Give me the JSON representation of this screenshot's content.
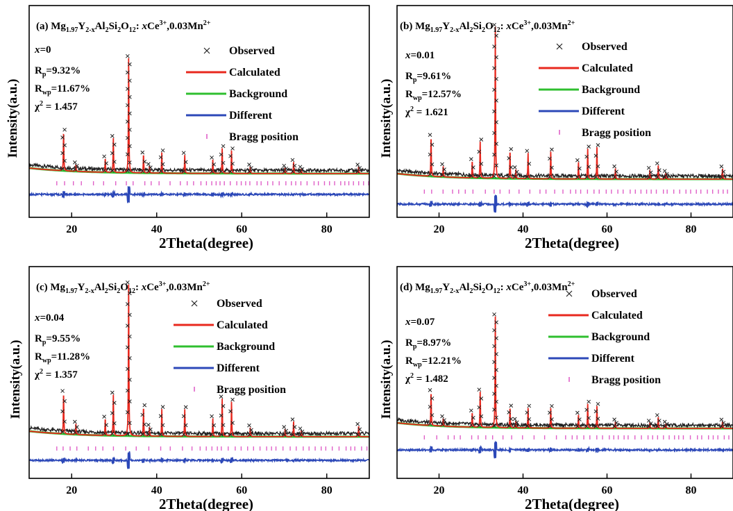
{
  "colors": {
    "observed": "#222222",
    "calculated": "#e8281e",
    "background": "#2fbf2f",
    "different": "#2c48b8",
    "bragg": "#e060c8",
    "axis": "#000000"
  },
  "legend": {
    "observed": "Observed",
    "calculated": "Calculated",
    "background": "Background",
    "different": "Different",
    "bragg": "Bragg position"
  },
  "chart_data": [
    {
      "type": "line",
      "panel": "(a)",
      "title": {
        "prefix": "(a)",
        "formula": "Mg1.97Y2-xAl2Si2O12: xCe3+,0.03Mn2+"
      },
      "xlabel": "2Theta(degree)",
      "ylabel": "Intensity(a.u.)",
      "xlim": [
        10,
        90
      ],
      "xticks": [
        20,
        40,
        60,
        80
      ],
      "annotations": {
        "x_label": "x=0",
        "rp": "9.32%",
        "rwp": "11.67%",
        "chi2": "1.457"
      },
      "peaks": [
        [
          18.1,
          0.34
        ],
        [
          21.0,
          0.06
        ],
        [
          27.9,
          0.12
        ],
        [
          29.8,
          0.3
        ],
        [
          33.4,
          1.0
        ],
        [
          36.9,
          0.16
        ],
        [
          38.3,
          0.06
        ],
        [
          41.2,
          0.18
        ],
        [
          46.6,
          0.16
        ],
        [
          53.2,
          0.12
        ],
        [
          55.4,
          0.22
        ],
        [
          57.6,
          0.2
        ],
        [
          62.0,
          0.06
        ],
        [
          70.2,
          0.05
        ],
        [
          72.2,
          0.1
        ],
        [
          74.0,
          0.04
        ],
        [
          87.5,
          0.06
        ]
      ],
      "series": [
        {
          "name": "Observed"
        },
        {
          "name": "Calculated"
        },
        {
          "name": "Background"
        },
        {
          "name": "Different"
        },
        {
          "name": "Bragg position"
        }
      ]
    },
    {
      "type": "line",
      "panel": "(b)",
      "title": {
        "prefix": "(b)",
        "formula": "Mg1.97Y2-xAl2Si2O12: xCe3+,0.03Mn2+"
      },
      "xlabel": "2Theta(degree)",
      "ylabel": "Intensity(a.u.)",
      "xlim": [
        10,
        90
      ],
      "xticks": [
        20,
        40,
        60,
        80
      ],
      "annotations": {
        "x_label": "x=0.01",
        "rp": "9.61%",
        "rwp": "12.57%",
        "chi2": "1.621"
      },
      "peaks": [
        [
          18.1,
          0.26
        ],
        [
          21.0,
          0.07
        ],
        [
          27.9,
          0.11
        ],
        [
          29.8,
          0.24
        ],
        [
          33.4,
          1.0
        ],
        [
          36.9,
          0.18
        ],
        [
          38.3,
          0.06
        ],
        [
          41.2,
          0.17
        ],
        [
          46.6,
          0.18
        ],
        [
          53.2,
          0.11
        ],
        [
          55.4,
          0.2
        ],
        [
          57.6,
          0.21
        ],
        [
          62.0,
          0.07
        ],
        [
          70.2,
          0.06
        ],
        [
          72.2,
          0.09
        ],
        [
          74.0,
          0.04
        ],
        [
          87.5,
          0.07
        ]
      ],
      "series": [
        {
          "name": "Observed"
        },
        {
          "name": "Calculated"
        },
        {
          "name": "Background"
        },
        {
          "name": "Different"
        },
        {
          "name": "Bragg position"
        }
      ]
    },
    {
      "type": "line",
      "panel": "(c)",
      "title": {
        "prefix": "(c)",
        "formula": "Mg1.97Y2-xAl2Si2O12: xCe3+,0.03Mn2+"
      },
      "xlabel": "2Theta(degree)",
      "ylabel": "Intensity(a.u.)",
      "xlim": [
        10,
        90
      ],
      "xticks": [
        20,
        40,
        60,
        80
      ],
      "annotations": {
        "x_label": "x=0.04",
        "rp": "9.55%",
        "rwp": "11.28%",
        "chi2": "1.357"
      },
      "peaks": [
        [
          18.1,
          0.27
        ],
        [
          21.0,
          0.07
        ],
        [
          27.9,
          0.11
        ],
        [
          29.8,
          0.27
        ],
        [
          33.4,
          1.0
        ],
        [
          36.9,
          0.19
        ],
        [
          38.3,
          0.06
        ],
        [
          41.2,
          0.18
        ],
        [
          46.6,
          0.18
        ],
        [
          53.2,
          0.12
        ],
        [
          55.4,
          0.25
        ],
        [
          57.6,
          0.23
        ],
        [
          62.0,
          0.06
        ],
        [
          70.2,
          0.05
        ],
        [
          72.2,
          0.1
        ],
        [
          74.0,
          0.04
        ],
        [
          87.5,
          0.07
        ]
      ],
      "series": [
        {
          "name": "Observed"
        },
        {
          "name": "Calculated"
        },
        {
          "name": "Background"
        },
        {
          "name": "Different"
        },
        {
          "name": "Bragg position"
        }
      ]
    },
    {
      "type": "line",
      "panel": "(d)",
      "title": {
        "prefix": "(d)",
        "formula": "Mg1.97Y2-xAl2Si2O12: xCe3+,0.03Mn2+"
      },
      "xlabel": "2Theta(degree)",
      "ylabel": "Intensity(a.u.)",
      "xlim": [
        10,
        90
      ],
      "xticks": [
        20,
        40,
        60,
        80
      ],
      "annotations": {
        "x_label": "x=0.07",
        "rp": "8.97%",
        "rwp": "12.21%",
        "chi2": "1.482"
      },
      "peaks": [
        [
          18.1,
          0.3
        ],
        [
          21.0,
          0.07
        ],
        [
          27.9,
          0.13
        ],
        [
          29.8,
          0.32
        ],
        [
          33.4,
          1.0
        ],
        [
          36.9,
          0.18
        ],
        [
          38.3,
          0.06
        ],
        [
          41.2,
          0.18
        ],
        [
          46.6,
          0.18
        ],
        [
          53.2,
          0.12
        ],
        [
          55.4,
          0.22
        ],
        [
          57.6,
          0.2
        ],
        [
          62.0,
          0.06
        ],
        [
          70.2,
          0.05
        ],
        [
          72.2,
          0.1
        ],
        [
          74.0,
          0.04
        ],
        [
          87.5,
          0.06
        ]
      ],
      "series": [
        {
          "name": "Observed"
        },
        {
          "name": "Calculated"
        },
        {
          "name": "Background"
        },
        {
          "name": "Different"
        },
        {
          "name": "Bragg position"
        }
      ]
    }
  ]
}
